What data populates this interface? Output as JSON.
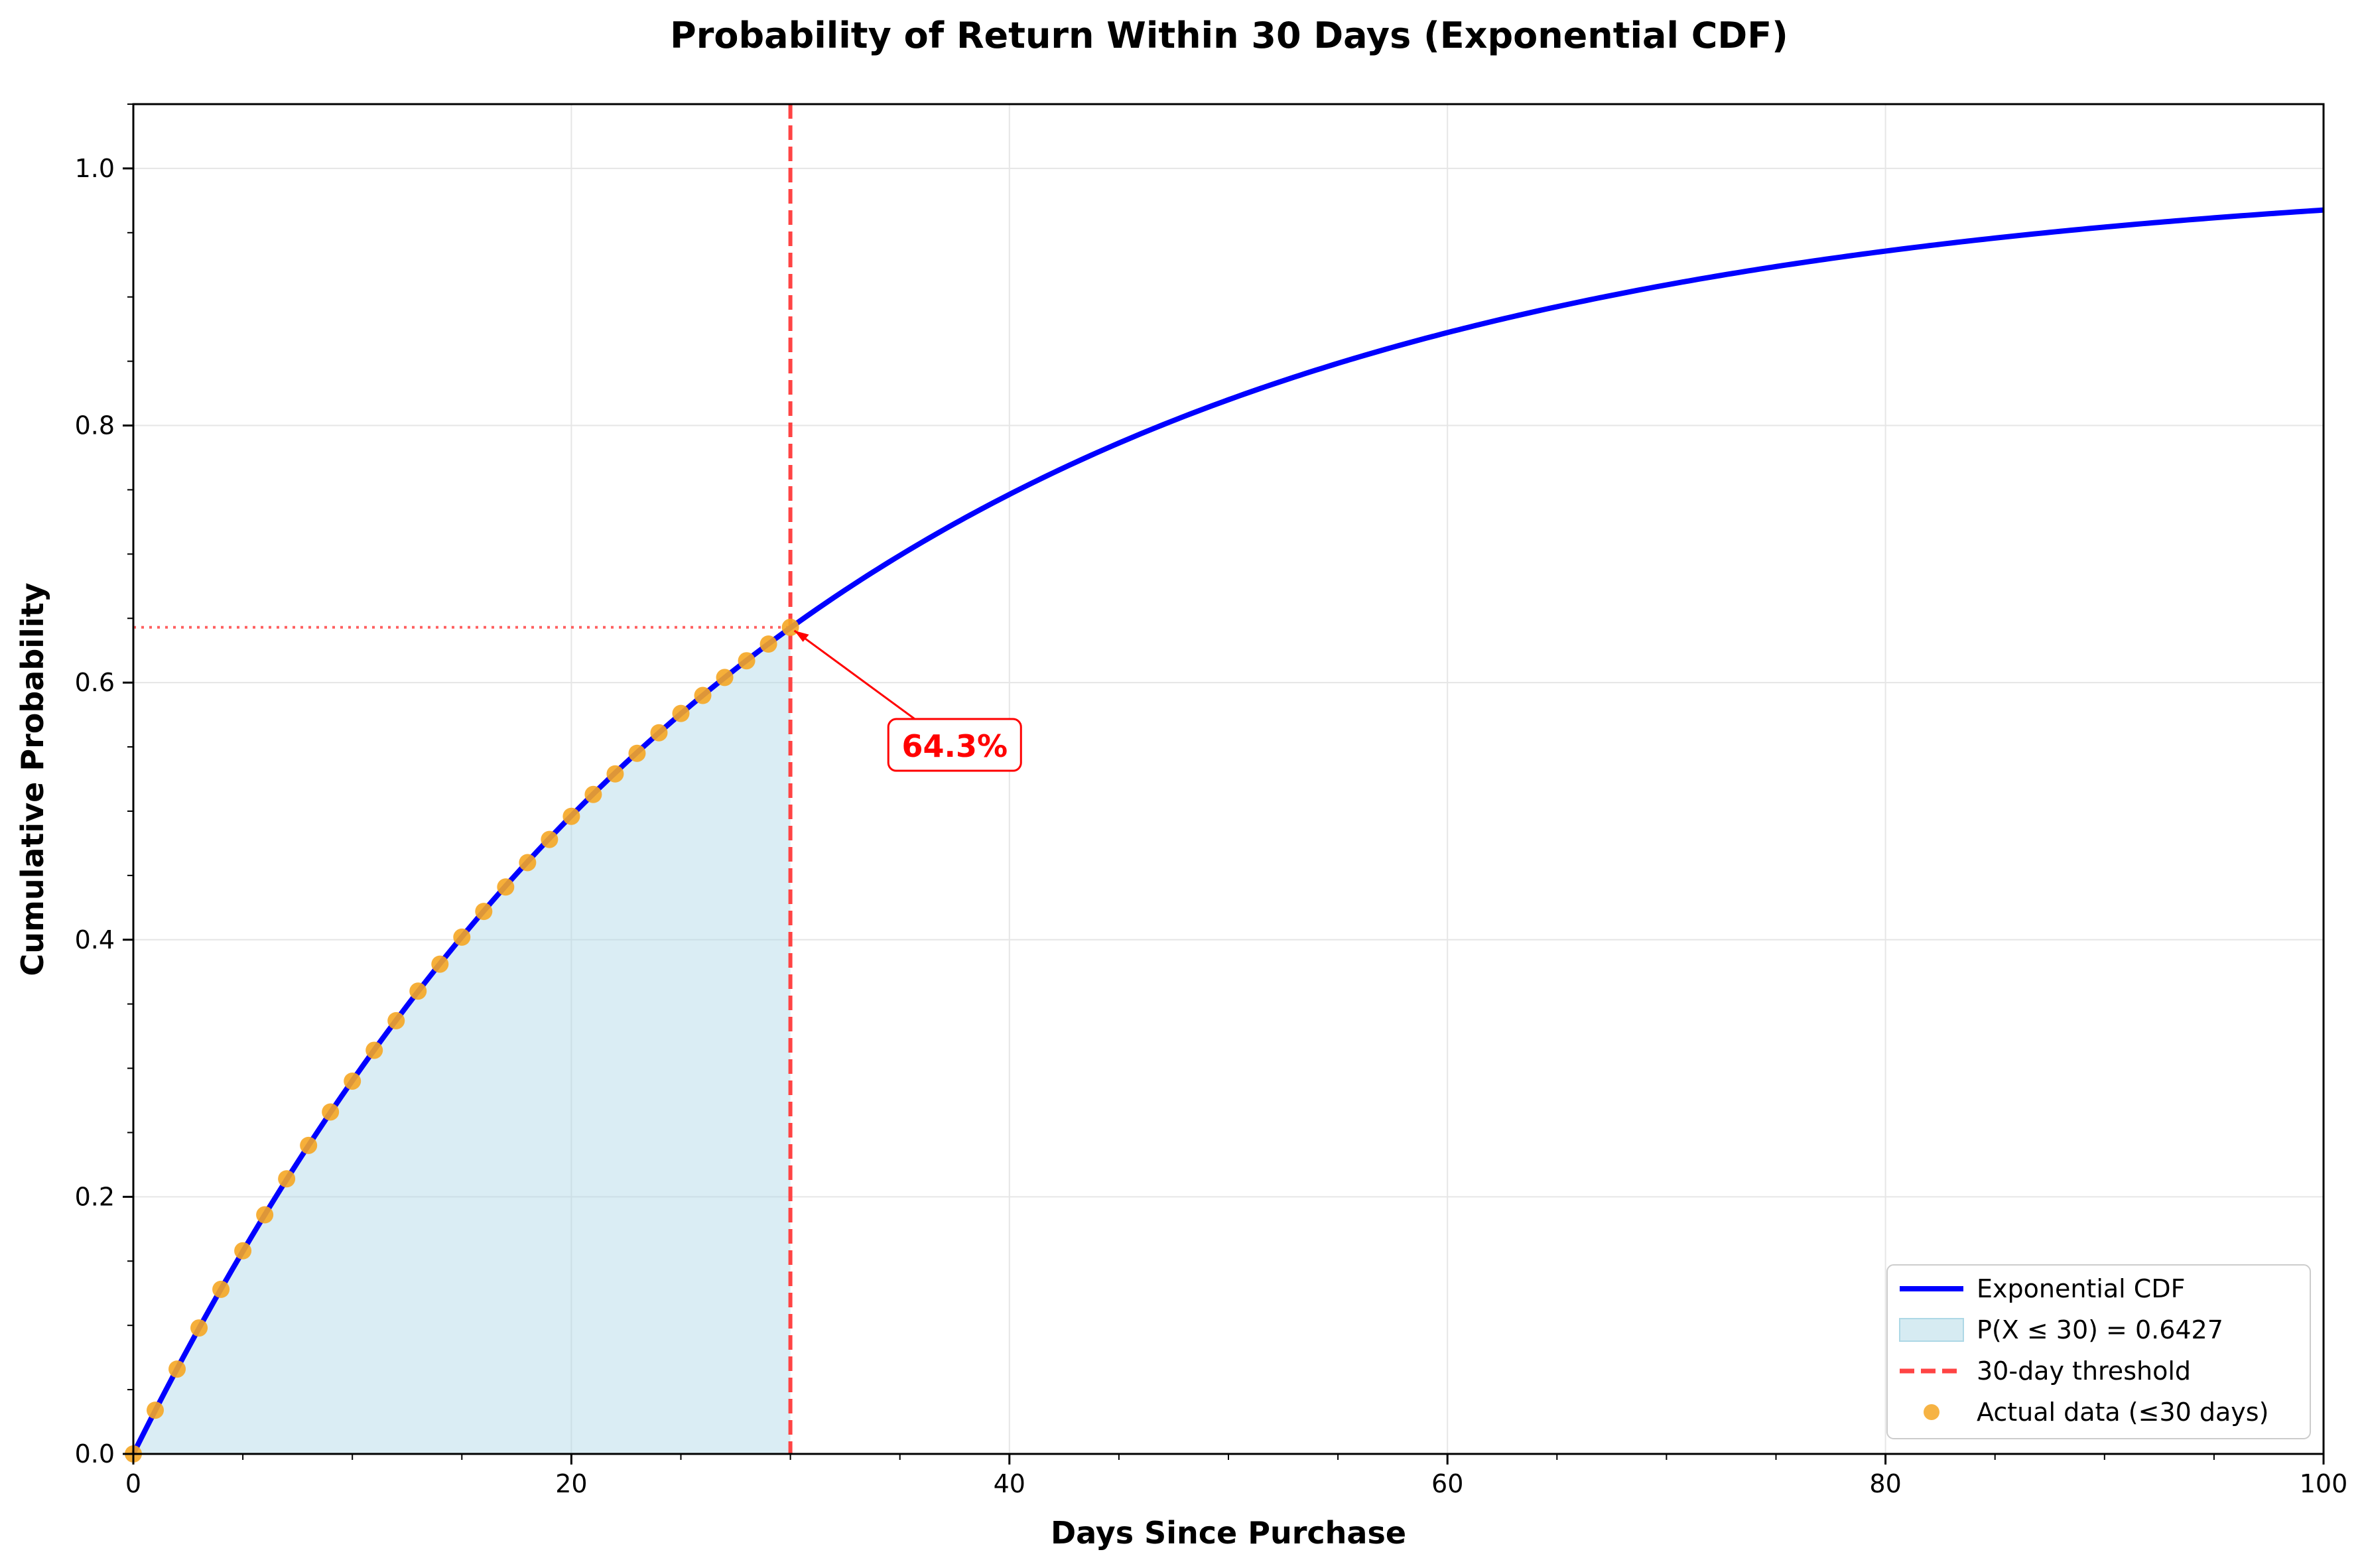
{
  "chart_data": {
    "type": "line",
    "title": "Probability of Return Within 30 Days (Exponential CDF)",
    "xlabel": "Days Since Purchase",
    "ylabel": "Cumulative Probability",
    "xlim": [
      0,
      100
    ],
    "ylim": [
      0,
      1.05
    ],
    "x_ticks": [
      0,
      20,
      40,
      60,
      80,
      100
    ],
    "x_tick_labels": [
      "0",
      "20",
      "40",
      "60",
      "80",
      "100"
    ],
    "y_ticks": [
      0.0,
      0.2,
      0.4,
      0.6,
      0.8,
      1.0
    ],
    "y_tick_labels": [
      "0.0",
      "0.2",
      "0.4",
      "0.6",
      "0.8",
      "1.0"
    ],
    "grid": true,
    "legend_position": "bottom-right",
    "series": [
      {
        "name": "Exponential CDF",
        "kind": "line",
        "color": "#0000ff",
        "rate": 0.0343,
        "x": [
          0,
          5,
          10,
          15,
          20,
          25,
          30,
          35,
          40,
          45,
          50,
          55,
          60,
          65,
          70,
          75,
          80,
          85,
          90,
          95,
          100
        ],
        "y": [
          0.0,
          0.158,
          0.29,
          0.402,
          0.496,
          0.576,
          0.643,
          0.699,
          0.746,
          0.786,
          0.82,
          0.848,
          0.872,
          0.892,
          0.909,
          0.924,
          0.936,
          0.946,
          0.954,
          0.962,
          0.968
        ]
      },
      {
        "name": "P(X ≤ 30) = 0.6427",
        "kind": "area",
        "color": "#add8e6",
        "x_range": [
          0,
          30
        ]
      },
      {
        "name": "30-day threshold",
        "kind": "vline",
        "color": "#ff4444",
        "x": 30
      },
      {
        "name": "Actual data (≤30 days)",
        "kind": "scatter",
        "color": "#f5a623",
        "x": [
          0,
          1,
          2,
          3,
          4,
          5,
          6,
          7,
          8,
          9,
          10,
          11,
          12,
          13,
          14,
          15,
          16,
          17,
          18,
          19,
          20,
          21,
          22,
          23,
          24,
          25,
          26,
          27,
          28,
          29,
          30
        ],
        "y": [
          0.0,
          0.034,
          0.066,
          0.098,
          0.128,
          0.158,
          0.186,
          0.214,
          0.24,
          0.266,
          0.29,
          0.314,
          0.337,
          0.36,
          0.381,
          0.402,
          0.422,
          0.441,
          0.46,
          0.478,
          0.496,
          0.513,
          0.529,
          0.545,
          0.561,
          0.576,
          0.59,
          0.604,
          0.617,
          0.63,
          0.643
        ]
      }
    ],
    "reference_hline": {
      "y": 0.643,
      "x_end": 30,
      "color": "#ff4444"
    },
    "annotation": {
      "text": "64.3%",
      "point": [
        30,
        0.643
      ],
      "text_at": [
        37.5,
        0.55
      ],
      "color": "#ff0000"
    }
  }
}
